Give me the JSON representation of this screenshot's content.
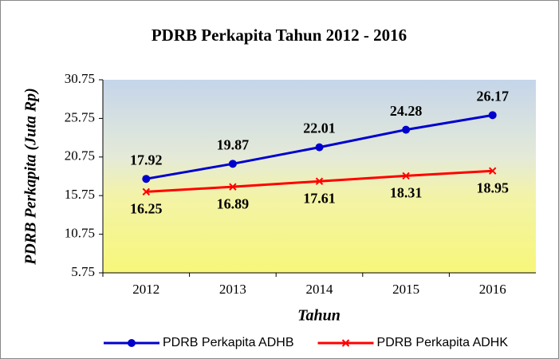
{
  "chart_data": {
    "type": "line",
    "title": "PDRB Perkapita Tahun 2012 - 2016",
    "x_label": "Tahun",
    "y_label": "PDRB Perkapita (Juta Rp)",
    "categories": [
      "2012",
      "2013",
      "2014",
      "2015",
      "2016"
    ],
    "series": [
      {
        "name": "PDRB Perkapita ADHB",
        "color": "#0000cc",
        "marker": "circle",
        "values": [
          17.92,
          19.87,
          22.01,
          24.28,
          26.17
        ]
      },
      {
        "name": "PDRB Perkapita ADHK",
        "color": "#ff0000",
        "marker": "x",
        "values": [
          16.25,
          16.89,
          17.61,
          18.31,
          18.95
        ]
      }
    ],
    "ylim": [
      5.75,
      30.75
    ],
    "yticks": [
      5.75,
      10.75,
      15.75,
      20.75,
      25.75,
      30.75
    ],
    "legend": "bottom"
  }
}
